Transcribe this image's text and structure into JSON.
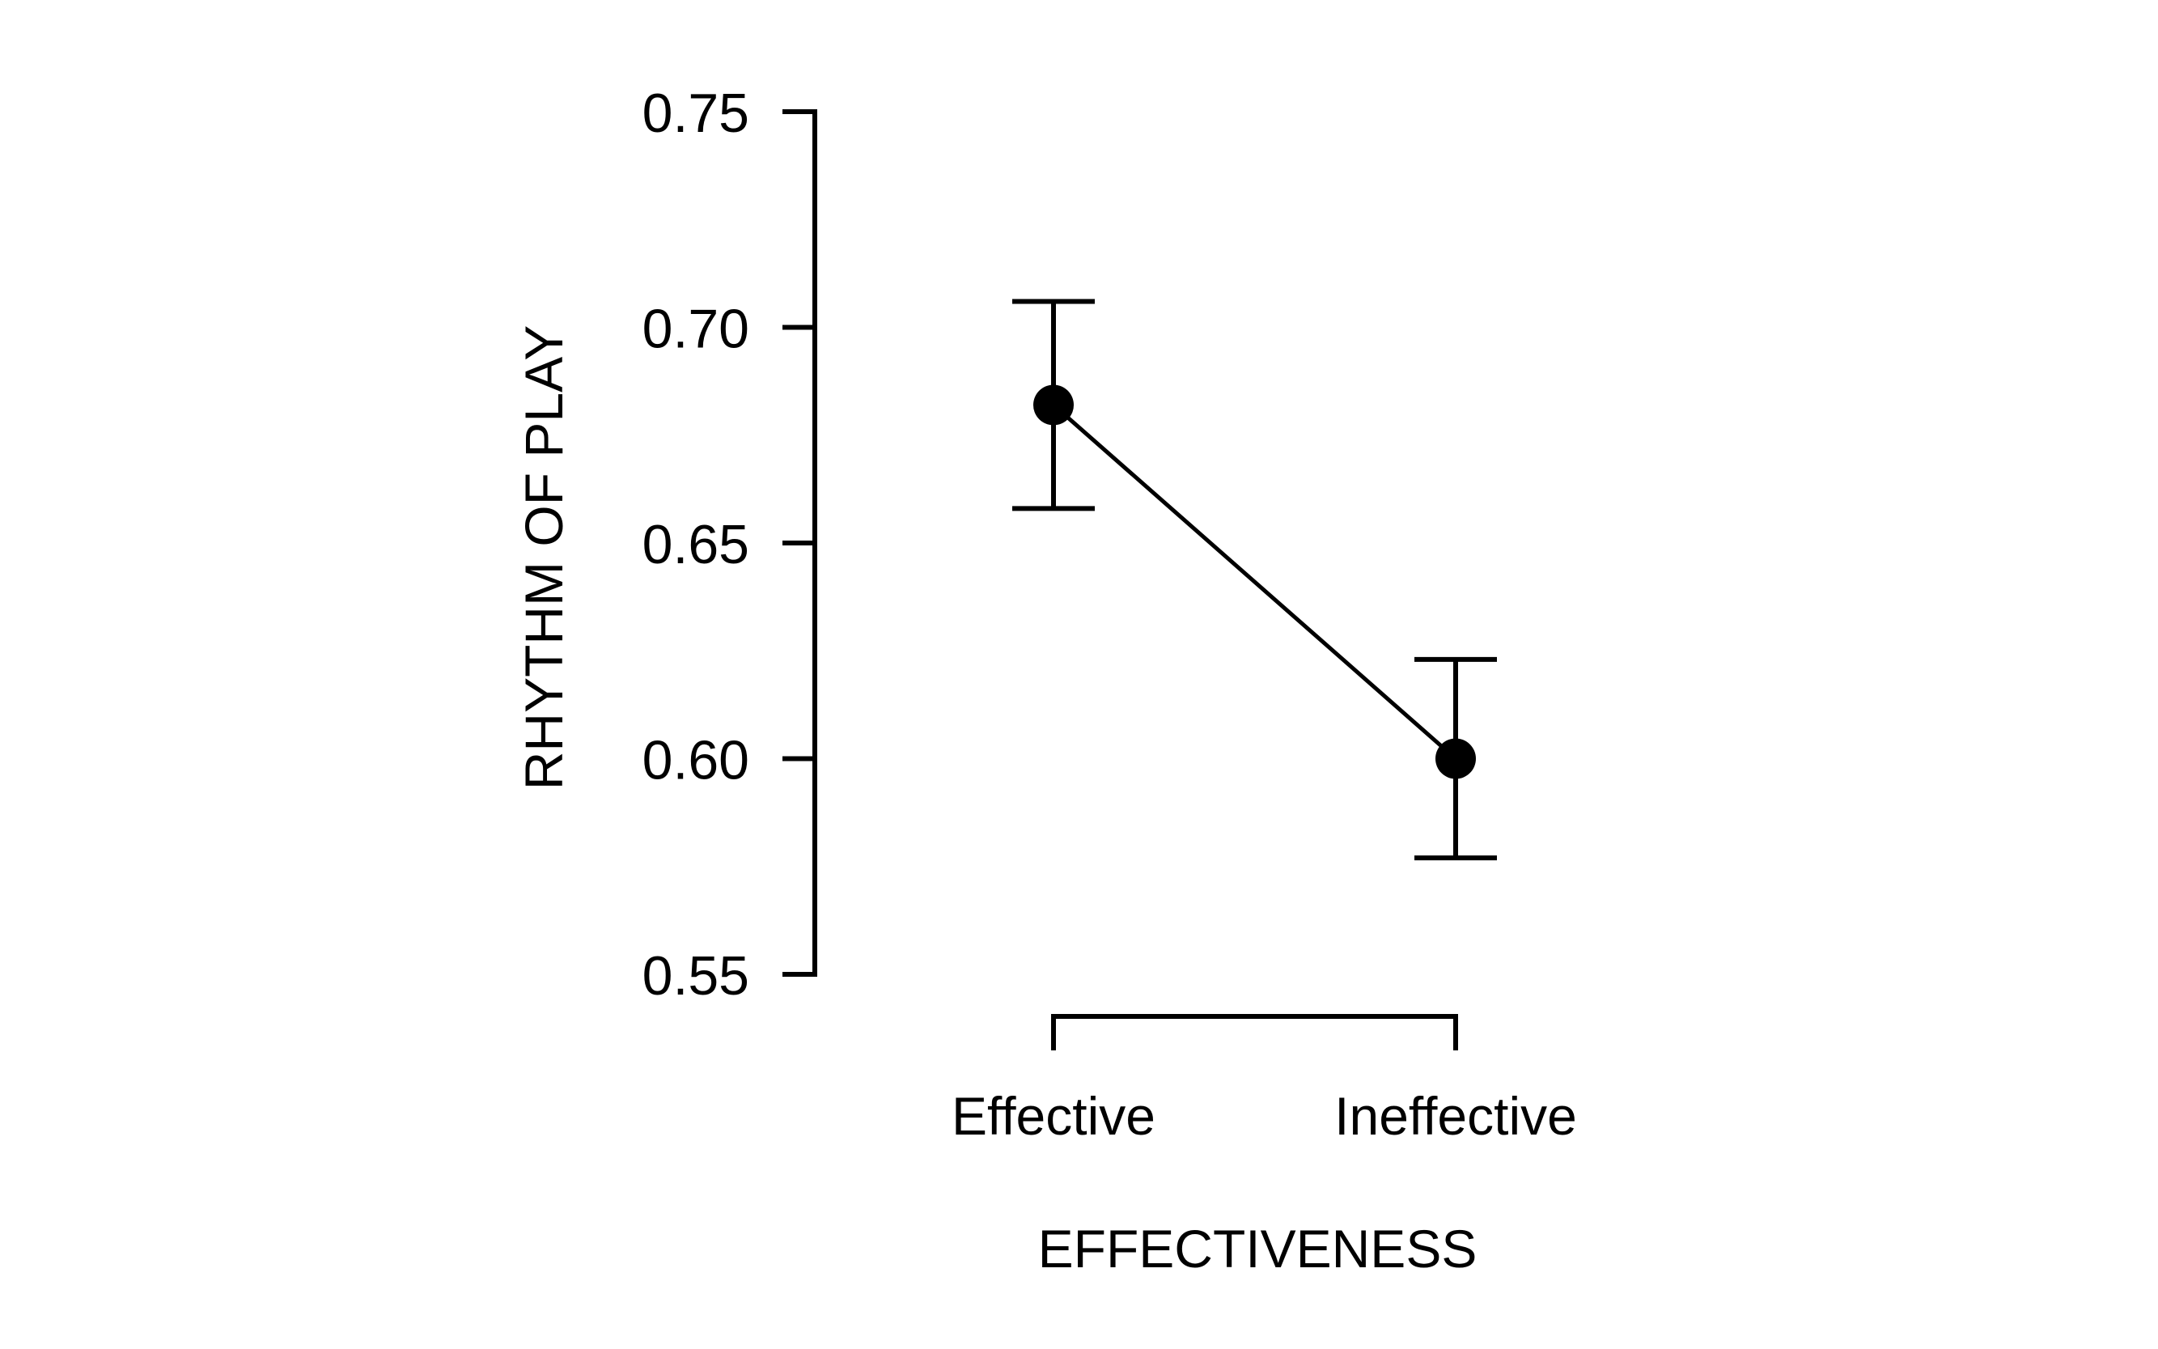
{
  "chart_data": {
    "type": "line",
    "title": "",
    "xlabel": "EFFECTIVENESS",
    "ylabel": "RHYTHM OF PLAY",
    "categories": [
      "Effective",
      "Ineffective"
    ],
    "series": [
      {
        "name": "Rhythm of play",
        "values": [
          0.682,
          0.6
        ],
        "error_upper": [
          0.706,
          0.623
        ],
        "error_lower": [
          0.658,
          0.577
        ]
      }
    ],
    "ylim": [
      0.55,
      0.75
    ],
    "yticks": [
      0.55,
      0.6,
      0.65,
      0.7,
      0.75
    ],
    "ytick_labels": [
      "0.55",
      "0.60",
      "0.65",
      "0.70",
      "0.75"
    ],
    "grid": false,
    "legend": "none",
    "colors": {
      "line": "#000000",
      "marker": "#000000",
      "axis": "#000000",
      "background": "#ffffff"
    },
    "marker": "filled-circle",
    "error_bars": "capped"
  }
}
